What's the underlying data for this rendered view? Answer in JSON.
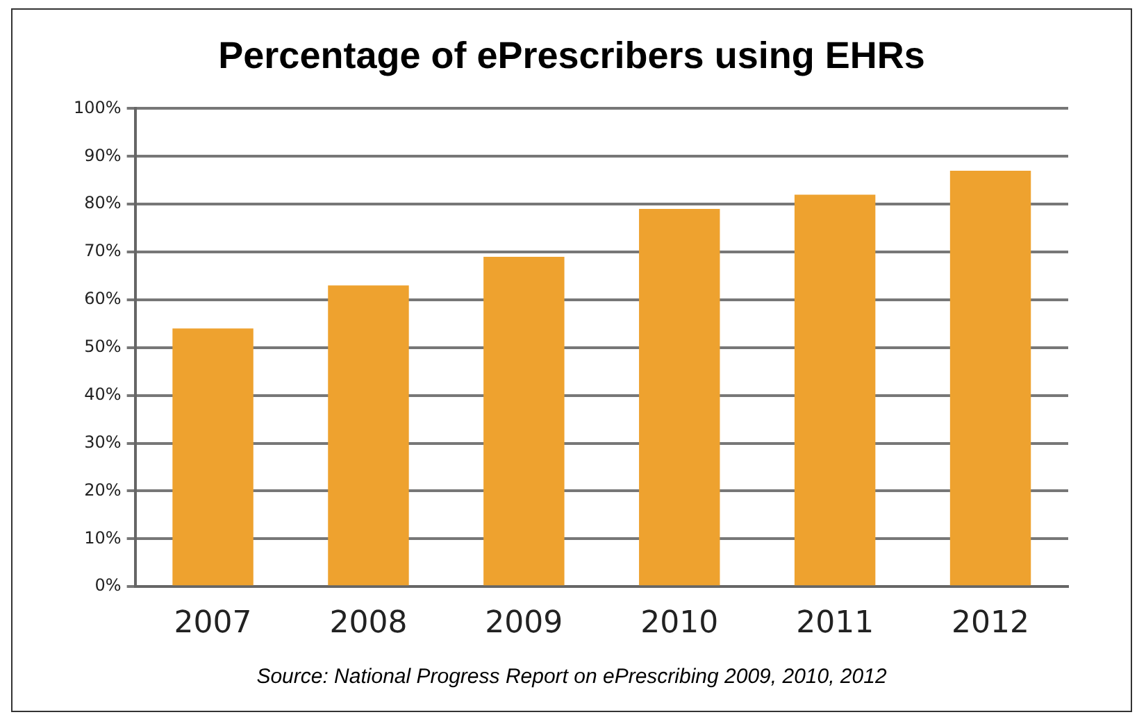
{
  "chart_data": {
    "type": "bar",
    "title": "Percentage of ePrescribers using EHRs",
    "categories": [
      "2007",
      "2008",
      "2009",
      "2010",
      "2011",
      "2012"
    ],
    "values": [
      54,
      63,
      69,
      79,
      82,
      87
    ],
    "color": "#eea22f",
    "ylim": [
      0,
      100
    ],
    "yticks": [
      {
        "value": 0,
        "label": "0%"
      },
      {
        "value": 10,
        "label": "10%"
      },
      {
        "value": 20,
        "label": "20%"
      },
      {
        "value": 30,
        "label": "30%"
      },
      {
        "value": 40,
        "label": "40%"
      },
      {
        "value": 50,
        "label": "50%"
      },
      {
        "value": 60,
        "label": "60%"
      },
      {
        "value": 70,
        "label": "70%"
      },
      {
        "value": 80,
        "label": "80%"
      },
      {
        "value": 90,
        "label": "90%"
      },
      {
        "value": 100,
        "label": "100%"
      }
    ],
    "grid": "y",
    "legend": false,
    "annotations": [
      "Source:  National Progress Report on ePrescribing 2009, 2010, 2012"
    ]
  }
}
